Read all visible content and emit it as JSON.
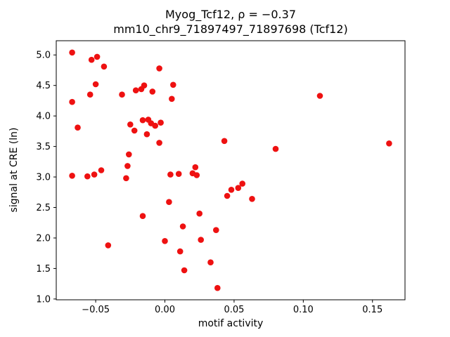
{
  "chart_data": {
    "type": "scatter",
    "title": "Myog_Tcf12, ρ = −0.37",
    "subtitle": "mm10_chr9_71897497_71897698 (Tcf12)",
    "xlabel": "motif activity",
    "ylabel": "signal at CRE (ln)",
    "xlim": [
      -0.0785,
      0.1735
    ],
    "ylim": [
      0.987,
      5.233
    ],
    "grid": false,
    "legend": "none",
    "marker_color": "#ee1111",
    "marker_radius": 4.3,
    "xticks": [
      {
        "value": -0.05,
        "label": "−0.05"
      },
      {
        "value": 0.0,
        "label": "0.00"
      },
      {
        "value": 0.05,
        "label": "0.05"
      },
      {
        "value": 0.1,
        "label": "0.10"
      },
      {
        "value": 0.15,
        "label": "0.15"
      }
    ],
    "yticks": [
      {
        "value": 1.0,
        "label": "1.0"
      },
      {
        "value": 1.5,
        "label": "1.5"
      },
      {
        "value": 2.0,
        "label": "2.0"
      },
      {
        "value": 2.5,
        "label": "2.5"
      },
      {
        "value": 3.0,
        "label": "3.0"
      },
      {
        "value": 3.5,
        "label": "3.5"
      },
      {
        "value": 4.0,
        "label": "4.0"
      },
      {
        "value": 4.5,
        "label": "4.5"
      },
      {
        "value": 5.0,
        "label": "5.0"
      }
    ],
    "points": [
      [
        -0.067,
        5.04
      ],
      [
        -0.053,
        4.92
      ],
      [
        -0.049,
        4.97
      ],
      [
        -0.044,
        4.81
      ],
      [
        -0.05,
        4.52
      ],
      [
        -0.054,
        4.35
      ],
      [
        -0.067,
        4.23
      ],
      [
        -0.063,
        3.81
      ],
      [
        -0.067,
        3.02
      ],
      [
        -0.056,
        3.01
      ],
      [
        -0.051,
        3.04
      ],
      [
        -0.046,
        3.11
      ],
      [
        -0.041,
        1.88
      ],
      [
        -0.031,
        4.35
      ],
      [
        -0.028,
        2.98
      ],
      [
        -0.027,
        3.18
      ],
      [
        -0.026,
        3.37
      ],
      [
        -0.025,
        3.86
      ],
      [
        -0.022,
        3.76
      ],
      [
        -0.021,
        4.42
      ],
      [
        -0.017,
        4.44
      ],
      [
        -0.015,
        4.5
      ],
      [
        -0.016,
        3.93
      ],
      [
        -0.012,
        3.94
      ],
      [
        -0.01,
        3.88
      ],
      [
        -0.013,
        3.7
      ],
      [
        -0.009,
        4.4
      ],
      [
        -0.007,
        3.84
      ],
      [
        -0.004,
        4.78
      ],
      [
        -0.003,
        3.89
      ],
      [
        -0.004,
        3.56
      ],
      [
        -0.016,
        2.36
      ],
      [
        0.0,
        1.95
      ],
      [
        0.003,
        2.59
      ],
      [
        0.005,
        4.28
      ],
      [
        0.006,
        4.51
      ],
      [
        0.004,
        3.04
      ],
      [
        0.01,
        3.05
      ],
      [
        0.011,
        1.78
      ],
      [
        0.013,
        2.19
      ],
      [
        0.014,
        1.47
      ],
      [
        0.02,
        3.06
      ],
      [
        0.022,
        3.16
      ],
      [
        0.023,
        3.03
      ],
      [
        0.025,
        2.4
      ],
      [
        0.026,
        1.97
      ],
      [
        0.033,
        1.6
      ],
      [
        0.037,
        2.13
      ],
      [
        0.038,
        1.18
      ],
      [
        0.043,
        3.59
      ],
      [
        0.045,
        2.69
      ],
      [
        0.048,
        2.79
      ],
      [
        0.053,
        2.82
      ],
      [
        0.056,
        2.89
      ],
      [
        0.063,
        2.64
      ],
      [
        0.08,
        3.46
      ],
      [
        0.112,
        4.33
      ],
      [
        0.162,
        3.55
      ]
    ]
  }
}
